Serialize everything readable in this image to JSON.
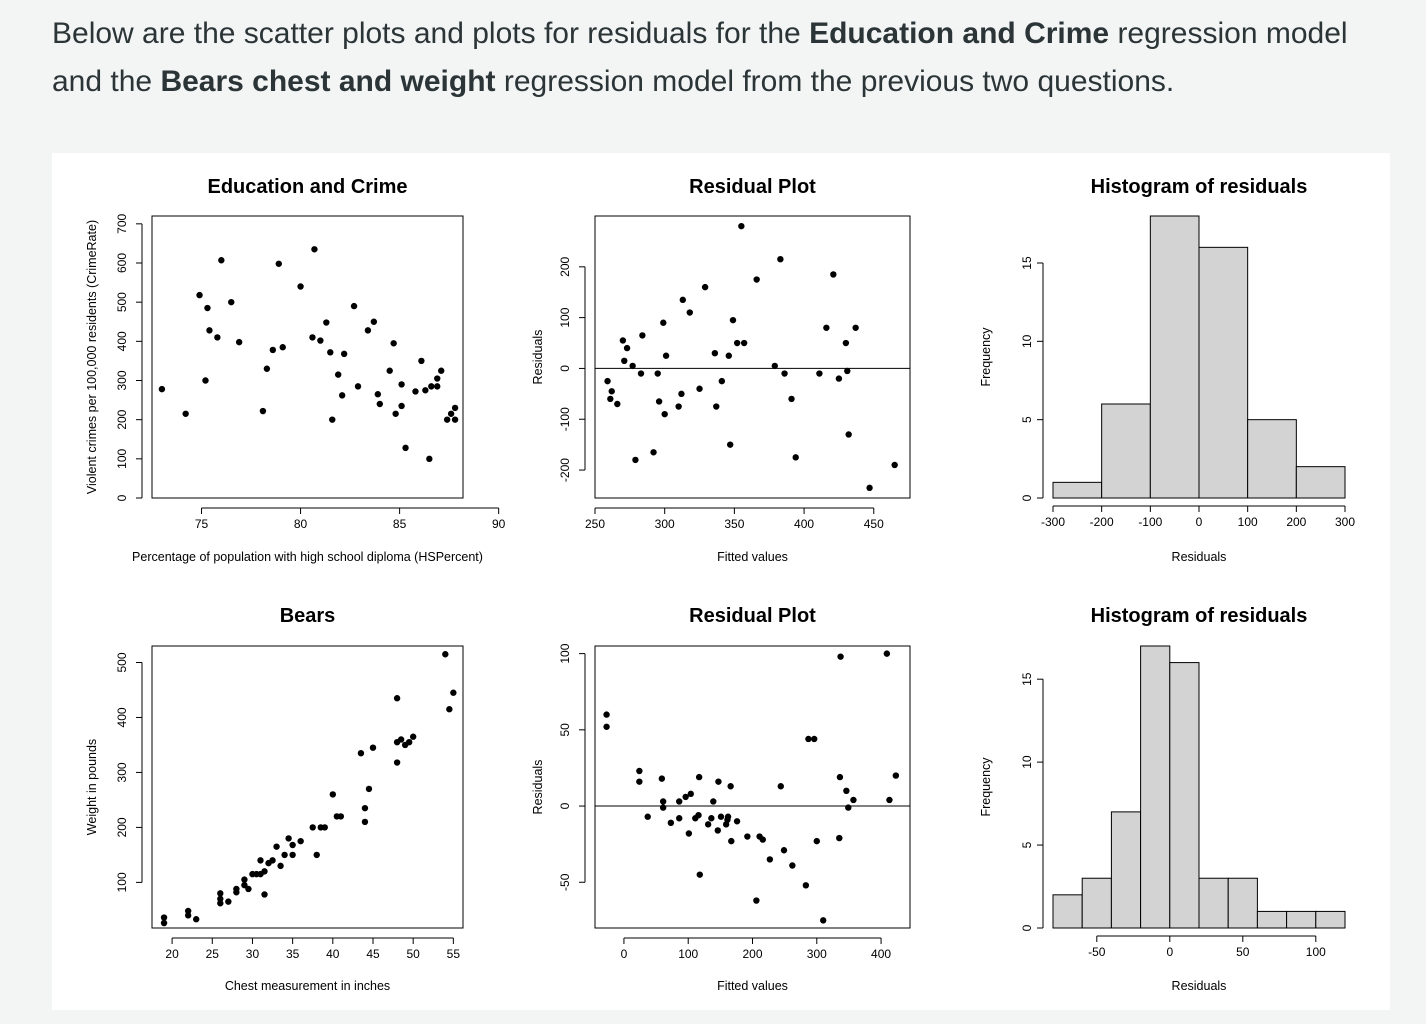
{
  "intro": {
    "p1": "Below are the scatter plots and plots for residuals for the ",
    "b1": "Education and Crime",
    "p2": " regression model and the ",
    "b2": "Bears chest and weight",
    "p3": " regression model from the previous two questions."
  },
  "chart_data": [
    {
      "id": "edu-scatter",
      "type": "scatter",
      "title": "Education and Crime",
      "xlabel": "Percentage of population with high school diploma (HSPercent)",
      "ylabel": "Violent crimes per 100,000 residents (CrimeRate)",
      "xlim": [
        72.5,
        88.2
      ],
      "ylim": [
        0,
        720
      ],
      "xticks": [
        75,
        80,
        85,
        90
      ],
      "yticks": [
        0,
        100,
        200,
        300,
        400,
        500,
        600,
        700
      ],
      "frame": "box",
      "hline": null,
      "points": [
        [
          73,
          278
        ],
        [
          74.2,
          215
        ],
        [
          74.9,
          518
        ],
        [
          75.2,
          300
        ],
        [
          75.3,
          485
        ],
        [
          75.4,
          428
        ],
        [
          75.8,
          410
        ],
        [
          76,
          607
        ],
        [
          76.5,
          500
        ],
        [
          76.9,
          398
        ],
        [
          78.1,
          222
        ],
        [
          78.3,
          330
        ],
        [
          78.6,
          378
        ],
        [
          78.9,
          598
        ],
        [
          79.1,
          385
        ],
        [
          80,
          540
        ],
        [
          80.6,
          410
        ],
        [
          80.7,
          635
        ],
        [
          81,
          402
        ],
        [
          81.3,
          448
        ],
        [
          81.5,
          372
        ],
        [
          81.6,
          200
        ],
        [
          81.9,
          315
        ],
        [
          82.1,
          262
        ],
        [
          82.2,
          368
        ],
        [
          82.7,
          490
        ],
        [
          82.9,
          285
        ],
        [
          83.4,
          428
        ],
        [
          83.7,
          450
        ],
        [
          83.9,
          265
        ],
        [
          84,
          240
        ],
        [
          84.5,
          325
        ],
        [
          84.7,
          395
        ],
        [
          84.8,
          215
        ],
        [
          85.1,
          290
        ],
        [
          85.1,
          235
        ],
        [
          85.3,
          128
        ],
        [
          85.8,
          272
        ],
        [
          86.1,
          350
        ],
        [
          86.3,
          275
        ],
        [
          86.5,
          100
        ],
        [
          86.6,
          285
        ],
        [
          86.9,
          305
        ],
        [
          86.9,
          285
        ],
        [
          87.1,
          325
        ],
        [
          87.4,
          200
        ],
        [
          87.6,
          215
        ],
        [
          87.8,
          230
        ],
        [
          87.8,
          200
        ]
      ]
    },
    {
      "id": "edu-resid",
      "type": "scatter",
      "title": "Residual Plot",
      "xlabel": "Fitted values",
      "ylabel": "Residuals",
      "xlim": [
        250,
        476
      ],
      "ylim": [
        -255,
        300
      ],
      "xticks": [
        250,
        300,
        350,
        400,
        450
      ],
      "yticks": [
        -200,
        -100,
        0,
        100,
        200
      ],
      "frame": "box",
      "hline": 0,
      "points": [
        [
          259,
          -25
        ],
        [
          261,
          -60
        ],
        [
          262,
          -45
        ],
        [
          266,
          -70
        ],
        [
          270,
          55
        ],
        [
          271,
          15
        ],
        [
          273,
          40
        ],
        [
          277,
          5
        ],
        [
          279,
          -180
        ],
        [
          283,
          -10
        ],
        [
          284,
          65
        ],
        [
          292,
          -165
        ],
        [
          295,
          -10
        ],
        [
          296,
          -65
        ],
        [
          299,
          90
        ],
        [
          300,
          -90
        ],
        [
          301,
          25
        ],
        [
          310,
          -75
        ],
        [
          312,
          -50
        ],
        [
          313,
          135
        ],
        [
          318,
          110
        ],
        [
          325,
          -40
        ],
        [
          329,
          160
        ],
        [
          336,
          30
        ],
        [
          337,
          -75
        ],
        [
          341,
          -25
        ],
        [
          346,
          25
        ],
        [
          347,
          -150
        ],
        [
          349,
          95
        ],
        [
          352,
          50
        ],
        [
          355,
          280
        ],
        [
          357,
          50
        ],
        [
          366,
          175
        ],
        [
          379,
          5
        ],
        [
          383,
          215
        ],
        [
          386,
          -10
        ],
        [
          391,
          -60
        ],
        [
          394,
          -175
        ],
        [
          411,
          -10
        ],
        [
          416,
          80
        ],
        [
          421,
          185
        ],
        [
          425,
          -20
        ],
        [
          430,
          50
        ],
        [
          431,
          -5
        ],
        [
          432,
          -130
        ],
        [
          437,
          80
        ],
        [
          447,
          -235
        ],
        [
          465,
          -190
        ]
      ]
    },
    {
      "id": "edu-hist",
      "type": "bar",
      "title": "Histogram of residuals",
      "xlabel": "Residuals",
      "ylabel": "Frequency",
      "xlim": [
        -300,
        300
      ],
      "ylim": [
        0,
        18
      ],
      "xticks": [
        -300,
        -200,
        -100,
        0,
        100,
        200,
        300
      ],
      "yticks": [
        0,
        5,
        10,
        15
      ],
      "bins": [
        [
          -300,
          -200,
          1
        ],
        [
          -200,
          -100,
          6
        ],
        [
          -100,
          0,
          18
        ],
        [
          0,
          100,
          16
        ],
        [
          100,
          200,
          5
        ],
        [
          200,
          300,
          2
        ]
      ]
    },
    {
      "id": "bears-scatter",
      "type": "scatter",
      "title": "Bears",
      "xlabel": "Chest measurement in inches",
      "ylabel": "Weight in pounds",
      "xlim": [
        17.5,
        56.2
      ],
      "ylim": [
        17,
        530
      ],
      "xticks": [
        20,
        25,
        30,
        35,
        40,
        45,
        50,
        55
      ],
      "yticks": [
        100,
        200,
        300,
        400,
        500
      ],
      "frame": "box",
      "hline": null,
      "points": [
        [
          19,
          26
        ],
        [
          19,
          36
        ],
        [
          22,
          40
        ],
        [
          22,
          48
        ],
        [
          23,
          33
        ],
        [
          26,
          62
        ],
        [
          26,
          80
        ],
        [
          26,
          70
        ],
        [
          27,
          65
        ],
        [
          28,
          82
        ],
        [
          28,
          88
        ],
        [
          29,
          95
        ],
        [
          29,
          105
        ],
        [
          29.5,
          88
        ],
        [
          30,
          115
        ],
        [
          30.5,
          115
        ],
        [
          31,
          140
        ],
        [
          31,
          115
        ],
        [
          31.5,
          78
        ],
        [
          31.5,
          120
        ],
        [
          32,
          135
        ],
        [
          32.5,
          140
        ],
        [
          33,
          165
        ],
        [
          33.5,
          130
        ],
        [
          34,
          150
        ],
        [
          34.5,
          180
        ],
        [
          35,
          150
        ],
        [
          35,
          168
        ],
        [
          36,
          175
        ],
        [
          37.5,
          200
        ],
        [
          38,
          150
        ],
        [
          38.5,
          200
        ],
        [
          39,
          200
        ],
        [
          40,
          260
        ],
        [
          40.5,
          220
        ],
        [
          41,
          220
        ],
        [
          43.5,
          335
        ],
        [
          44,
          235
        ],
        [
          44,
          210
        ],
        [
          44.5,
          270
        ],
        [
          45,
          345
        ],
        [
          48,
          355
        ],
        [
          48,
          318
        ],
        [
          48,
          435
        ],
        [
          48.5,
          360
        ],
        [
          49,
          350
        ],
        [
          49.5,
          355
        ],
        [
          50,
          365
        ],
        [
          54,
          515
        ],
        [
          54.5,
          415
        ],
        [
          55,
          445
        ]
      ]
    },
    {
      "id": "bears-resid",
      "type": "scatter",
      "title": "Residual Plot",
      "xlabel": "Fitted values",
      "ylabel": "Residuals",
      "xlim": [
        -45,
        445
      ],
      "ylim": [
        -80,
        105
      ],
      "xticks": [
        0,
        100,
        200,
        300,
        400
      ],
      "yticks": [
        -50,
        0,
        50,
        100
      ],
      "frame": "box",
      "hline": 0,
      "points": [
        [
          -27,
          60
        ],
        [
          -27,
          52
        ],
        [
          24,
          23
        ],
        [
          24,
          16
        ],
        [
          37,
          -7
        ],
        [
          59,
          18
        ],
        [
          61,
          3
        ],
        [
          61,
          -1
        ],
        [
          73,
          -11
        ],
        [
          86,
          -8
        ],
        [
          86,
          3
        ],
        [
          96,
          6
        ],
        [
          101,
          -18
        ],
        [
          104,
          8
        ],
        [
          111,
          -8
        ],
        [
          116,
          -6
        ],
        [
          117,
          19
        ],
        [
          118,
          -45
        ],
        [
          131,
          -12
        ],
        [
          136,
          -8
        ],
        [
          139,
          3
        ],
        [
          146,
          -16
        ],
        [
          147,
          16
        ],
        [
          151,
          -7
        ],
        [
          159,
          -12
        ],
        [
          161,
          -9
        ],
        [
          162,
          -7
        ],
        [
          166,
          13
        ],
        [
          167,
          -23
        ],
        [
          176,
          -10
        ],
        [
          192,
          -20
        ],
        [
          206,
          -62
        ],
        [
          211,
          -20
        ],
        [
          216,
          -22
        ],
        [
          227,
          -35
        ],
        [
          244,
          13
        ],
        [
          249,
          -29
        ],
        [
          262,
          -39
        ],
        [
          283,
          -52
        ],
        [
          287,
          44
        ],
        [
          296,
          44
        ],
        [
          300,
          -23
        ],
        [
          310,
          -75
        ],
        [
          335,
          -21
        ],
        [
          336,
          19
        ],
        [
          337,
          98
        ],
        [
          346,
          10
        ],
        [
          349,
          -1
        ],
        [
          357,
          4
        ],
        [
          409,
          100
        ],
        [
          413,
          4
        ],
        [
          423,
          20
        ]
      ]
    },
    {
      "id": "bears-hist",
      "type": "bar",
      "title": "Histogram of residuals",
      "xlabel": "Residuals",
      "ylabel": "Frequency",
      "xlim": [
        -80,
        120
      ],
      "ylim": [
        0,
        17
      ],
      "xticks": [
        -50,
        0,
        50,
        100
      ],
      "yticks": [
        0,
        5,
        10,
        15
      ],
      "bins": [
        [
          -80,
          -60,
          2
        ],
        [
          -60,
          -40,
          3
        ],
        [
          -40,
          -20,
          7
        ],
        [
          -20,
          0,
          17
        ],
        [
          0,
          20,
          16
        ],
        [
          20,
          40,
          3
        ],
        [
          40,
          60,
          3
        ],
        [
          60,
          80,
          1
        ],
        [
          80,
          100,
          1
        ],
        [
          100,
          120,
          1
        ]
      ]
    }
  ]
}
